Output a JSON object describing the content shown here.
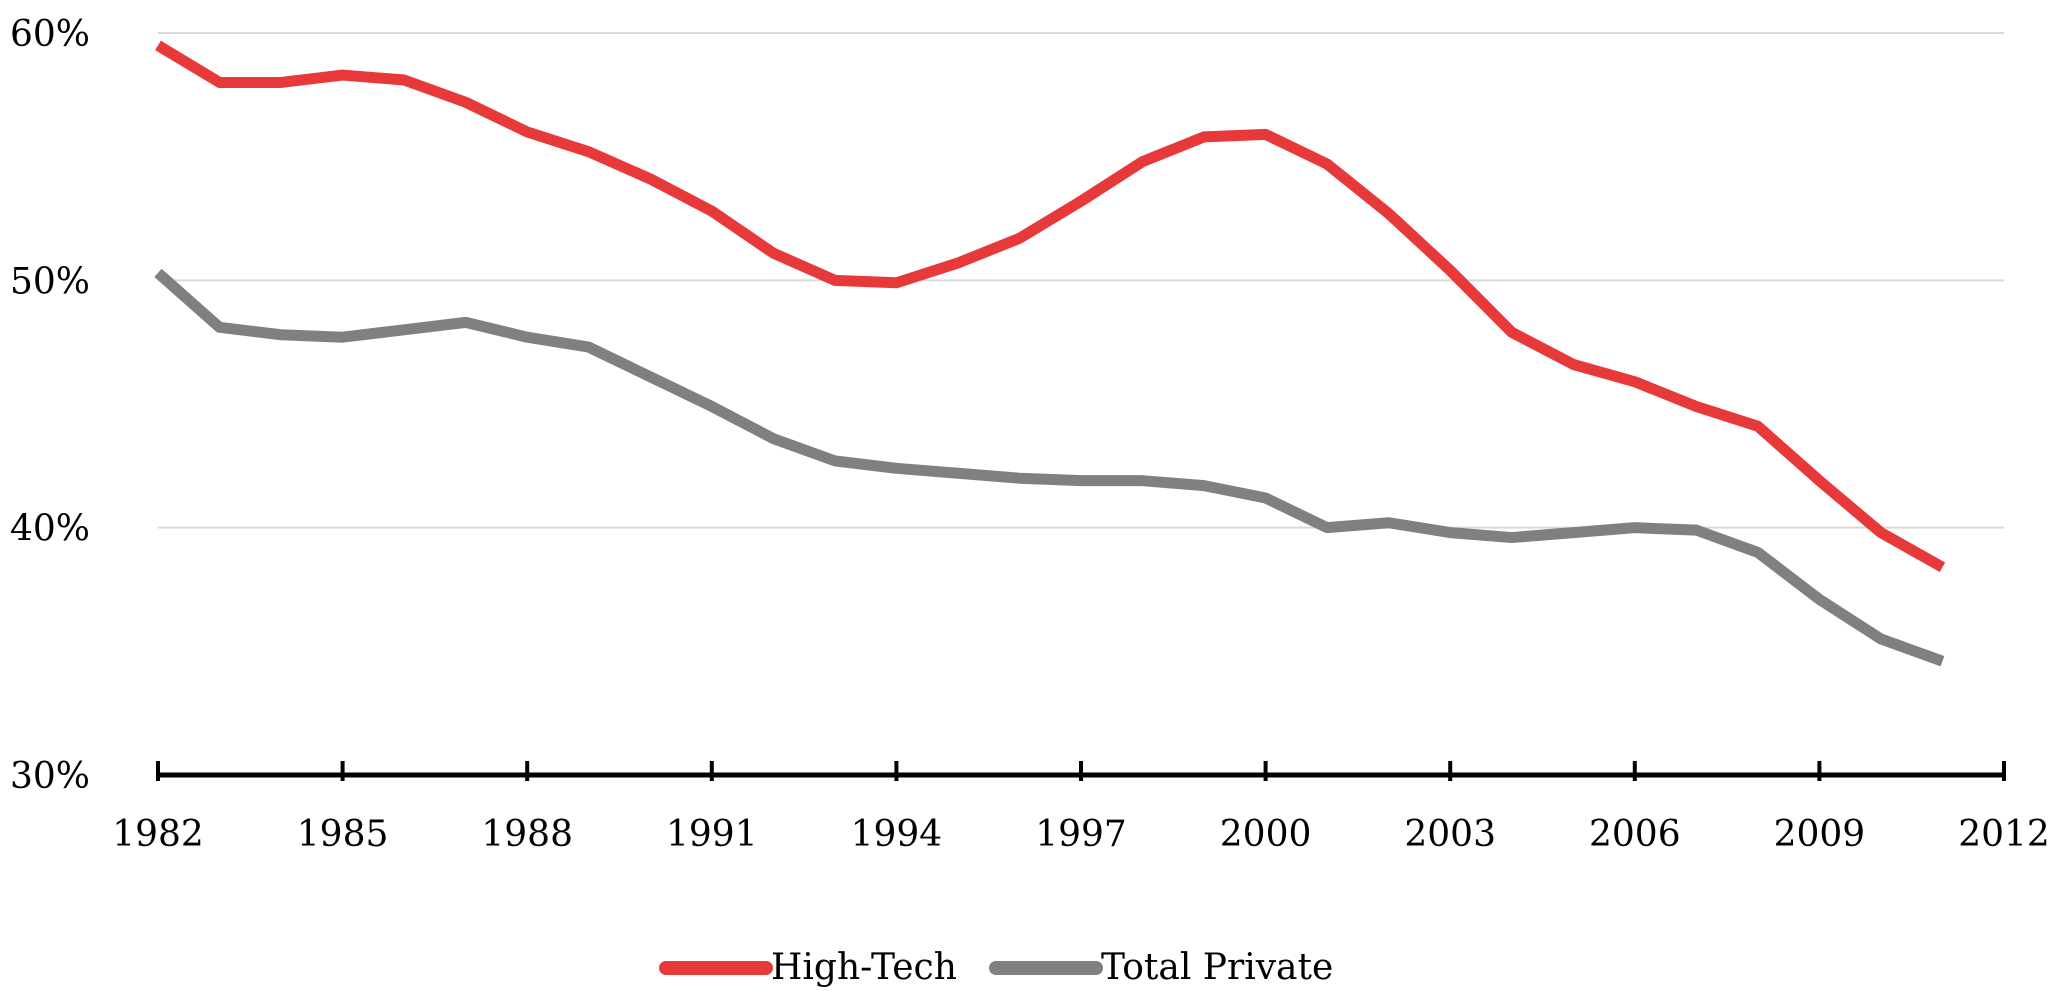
{
  "chart_data": {
    "type": "line",
    "x": [
      1982,
      1983,
      1984,
      1985,
      1986,
      1987,
      1988,
      1989,
      1990,
      1991,
      1992,
      1993,
      1994,
      1995,
      1996,
      1997,
      1998,
      1999,
      2000,
      2001,
      2002,
      2003,
      2004,
      2005,
      2006,
      2007,
      2008,
      2009,
      2010,
      2011
    ],
    "series": [
      {
        "name": "High-Tech",
        "color": "#e8393a",
        "values": [
          59.5,
          58.0,
          58.0,
          58.3,
          58.1,
          57.2,
          56.0,
          55.2,
          54.1,
          52.8,
          51.1,
          50.0,
          49.9,
          50.7,
          51.7,
          53.2,
          54.8,
          55.8,
          55.9,
          54.7,
          52.7,
          50.4,
          47.9,
          46.6,
          45.9,
          44.9,
          44.1,
          41.9,
          39.8,
          38.4
        ]
      },
      {
        "name": "Total Private",
        "color": "#808080",
        "values": [
          50.3,
          48.1,
          47.8,
          47.7,
          48.0,
          48.3,
          47.7,
          47.3,
          46.1,
          44.9,
          43.6,
          42.7,
          42.4,
          42.2,
          42.0,
          41.9,
          41.9,
          41.7,
          41.2,
          40.0,
          40.2,
          39.8,
          39.6,
          39.8,
          40.0,
          39.9,
          39.0,
          37.1,
          35.5,
          34.6
        ]
      }
    ],
    "xlim": [
      1982,
      2012
    ],
    "xticks": [
      1982,
      1985,
      1988,
      1991,
      1994,
      1997,
      2000,
      2003,
      2006,
      2009,
      2012
    ],
    "ylim": [
      30,
      60
    ],
    "yticks": [
      {
        "value": 30,
        "label": "30%"
      },
      {
        "value": 40,
        "label": "40%"
      },
      {
        "value": 50,
        "label": "50%"
      },
      {
        "value": 60,
        "label": "60%"
      }
    ],
    "grid": true,
    "legend": "bottom"
  }
}
